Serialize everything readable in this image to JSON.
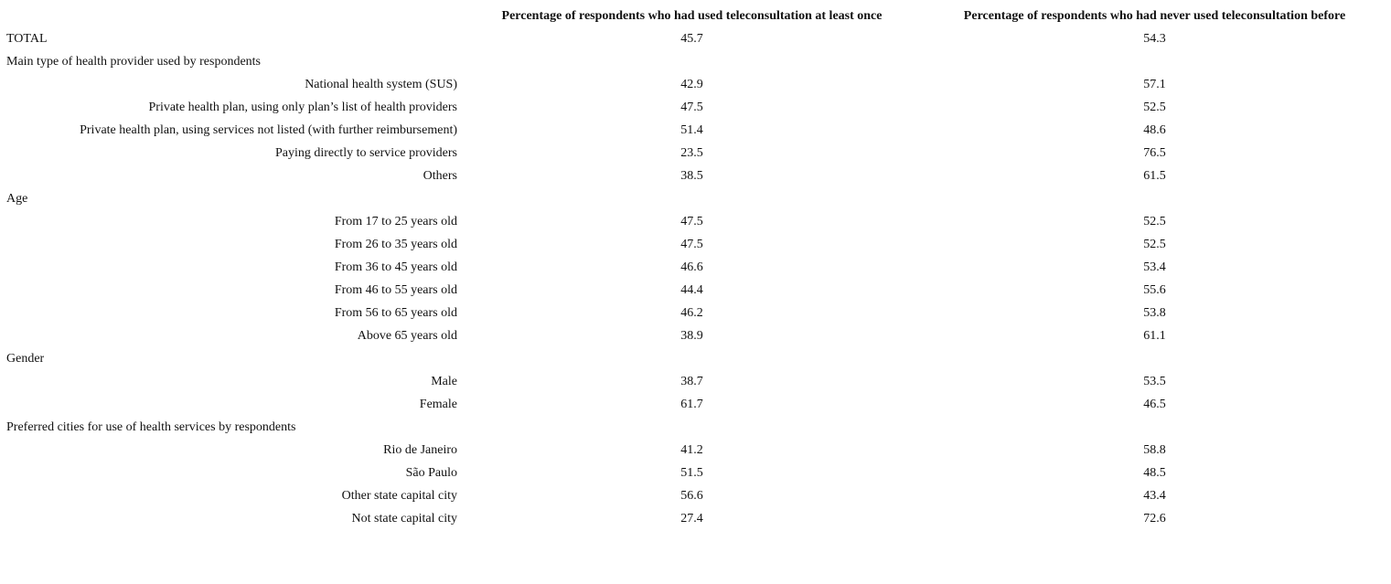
{
  "table": {
    "columns": [
      "Percentage of respondents who had used teleconsultation at least once",
      "Percentage of respondents who had never used teleconsultation before"
    ],
    "rows": [
      [
        "TOTAL",
        45.7,
        54.3
      ],
      [
        "Main type of health provider used by respondents"
      ],
      [
        "National health system (SUS)",
        42.9,
        57.1
      ],
      [
        "Private health plan, using only plan’s list of health providers",
        47.5,
        52.5
      ],
      [
        "Private health plan, using services not listed (with further reimbursement)",
        51.4,
        48.6
      ],
      [
        "Paying directly to service providers",
        23.5,
        76.5
      ],
      [
        "Others",
        38.5,
        61.5
      ],
      [
        "Age"
      ],
      [
        "From 17 to 25 years old",
        47.5,
        52.5
      ],
      [
        "From 26 to 35 years old",
        47.5,
        52.5
      ],
      [
        "From 36 to 45 years old",
        46.6,
        53.4
      ],
      [
        "From 46 to 55 years old",
        44.4,
        55.6
      ],
      [
        "From 56 to 65 years old",
        46.2,
        53.8
      ],
      [
        "Above 65 years old",
        38.9,
        61.1
      ],
      [
        "Gender"
      ],
      [
        "Male",
        38.7,
        53.5
      ],
      [
        "Female",
        61.7,
        46.5
      ],
      [
        "Preferred cities for use of health services by respondents"
      ],
      [
        "Rio de Janeiro",
        41.2,
        58.8
      ],
      [
        "São Paulo",
        51.5,
        48.5
      ],
      [
        "Other state capital city",
        56.6,
        43.4
      ],
      [
        "Not state capital city",
        27.4,
        72.6
      ]
    ]
  }
}
